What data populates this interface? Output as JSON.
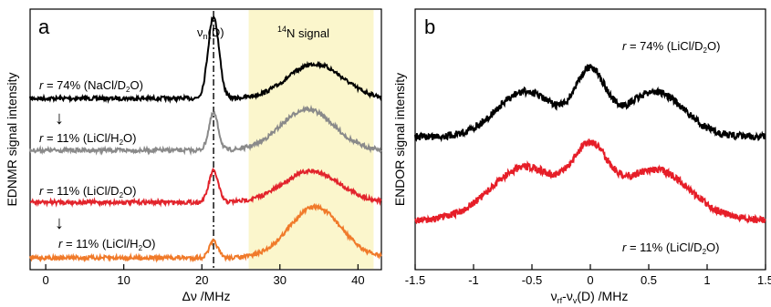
{
  "chart_data": [
    {
      "panel": "a",
      "type": "line",
      "xlabel": "Δν /MHz",
      "ylabel": "EDNMR signal intensity",
      "xlim": [
        -2,
        43
      ],
      "xticks": [
        0,
        10,
        20,
        30,
        40
      ],
      "yticks": "none",
      "grid": false,
      "legend": "none",
      "highlight_band": {
        "x": [
          26,
          42
        ],
        "color": "#fbf6cc",
        "label": "14N signal"
      },
      "reference_line": {
        "x": 21.5,
        "label": "νn(D)",
        "style": "dash-dot"
      },
      "series": [
        {
          "label": "r = 74% (NaCl/D2O)",
          "color": "#000000",
          "baseline_rank": 1,
          "peaks": [
            {
              "x": 21.5,
              "height": 1.0,
              "width": 0.7
            },
            {
              "x": 34.5,
              "height": 0.42,
              "width": 3.5
            }
          ]
        },
        {
          "label": "r = 11% (LiCl/H2O)",
          "color": "#8a8a8a",
          "baseline_rank": 2,
          "peaks": [
            {
              "x": 21.5,
              "height": 0.45,
              "width": 0.6
            },
            {
              "x": 33.5,
              "height": 0.5,
              "width": 3.4
            }
          ]
        },
        {
          "label": "r = 11% (LiCl/D2O)",
          "color": "#e2242c",
          "baseline_rank": 3,
          "peaks": [
            {
              "x": 21.5,
              "height": 0.38,
              "width": 0.6
            },
            {
              "x": 34.0,
              "height": 0.38,
              "width": 3.6
            }
          ]
        },
        {
          "label": "r = 11% (LiCl/H2O)",
          "color": "#f07a2a",
          "baseline_rank": 4,
          "peaks": [
            {
              "x": 21.5,
              "height": 0.2,
              "width": 0.55
            },
            {
              "x": 34.5,
              "height": 0.62,
              "width": 3.3
            }
          ]
        }
      ]
    },
    {
      "panel": "b",
      "type": "line",
      "xlabel": "νrf-νv(D) /MHz",
      "ylabel": "ENDOR signal intensity",
      "xlim": [
        -1.5,
        1.5
      ],
      "xticks": [
        -1.5,
        -1,
        -0.5,
        0,
        0.5,
        1,
        1.5
      ],
      "yticks": "none",
      "grid": false,
      "legend": "none",
      "series": [
        {
          "label": "r = 74% (LiCl/D2O)",
          "color": "#000000",
          "baseline_rank": 1,
          "peaks": [
            {
              "x": -0.55,
              "height": 0.55,
              "width": 0.25
            },
            {
              "x": 0.0,
              "height": 0.75,
              "width": 0.13
            },
            {
              "x": 0.55,
              "height": 0.55,
              "width": 0.25
            }
          ]
        },
        {
          "label": "r = 11% (LiCl/D2O)",
          "color": "#e61e28",
          "baseline_rank": 2,
          "peaks": [
            {
              "x": -0.55,
              "height": 0.65,
              "width": 0.3
            },
            {
              "x": 0.0,
              "height": 0.72,
              "width": 0.15
            },
            {
              "x": 0.55,
              "height": 0.62,
              "width": 0.3
            }
          ]
        }
      ]
    }
  ],
  "panel_a": {
    "label": "a",
    "ylabel": "EDNMR signal intensity",
    "xlabel_symbol": "Δν",
    "xlabel_unit": " /MHz",
    "tick_labels": [
      "0",
      "10",
      "20",
      "30",
      "40"
    ],
    "band_label_sup": "14",
    "band_label_text": "N signal",
    "ref_symbol": "ν",
    "ref_sub": "n",
    "ref_tail": "(D)",
    "trace_labels": [
      {
        "r": "r",
        "pre": " = 74% (NaCl/D",
        "sub": "2",
        "post": "O)"
      },
      {
        "r": "r",
        "pre": " = 11% (LiCl/H",
        "sub": "2",
        "post": "O)"
      },
      {
        "r": "r",
        "pre": " = 11% (LiCl/D",
        "sub": "2",
        "post": "O)"
      },
      {
        "r": "r",
        "pre": " = 11% (LiCl/H",
        "sub": "2",
        "post": "O)"
      }
    ],
    "arrow_glyph": "↓"
  },
  "panel_b": {
    "label": "b",
    "ylabel": "ENDOR signal intensity",
    "xlabel_a": "ν",
    "xlabel_a_sub": "rf",
    "xlabel_b": "-ν",
    "xlabel_b_sub": "v",
    "xlabel_tail": "(D) /MHz",
    "tick_labels": [
      "-1.5",
      "-1",
      "-0.5",
      "0",
      "0.5",
      "1",
      "1.5"
    ],
    "trace_labels": [
      {
        "r": "r",
        "pre": " = 74% (LiCl/D",
        "sub": "2",
        "post": "O)"
      },
      {
        "r": "r",
        "pre": " = 11% (LiCl/D",
        "sub": "2",
        "post": "O)"
      }
    ]
  }
}
